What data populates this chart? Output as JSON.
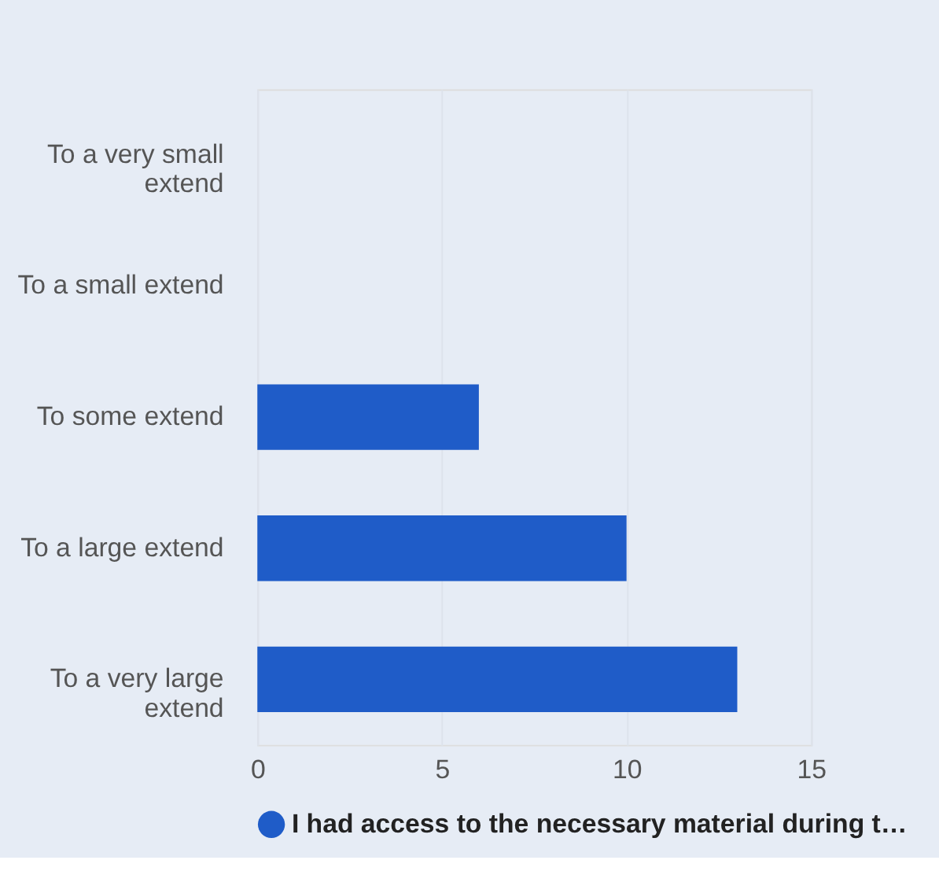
{
  "chart_data": {
    "type": "bar",
    "orientation": "horizontal",
    "categories": [
      "To a very small extend",
      "To a small extend",
      "To some extend",
      "To a large extend",
      "To a very large extend"
    ],
    "series": [
      {
        "name": "I had access to the necessary material during t…",
        "color": "#1f5cc8",
        "values": [
          0,
          0,
          6,
          10,
          13
        ]
      }
    ],
    "xlim": [
      0,
      15
    ],
    "xticks": [
      0,
      5,
      10,
      15
    ],
    "grid": "x",
    "legend": "bottom"
  }
}
